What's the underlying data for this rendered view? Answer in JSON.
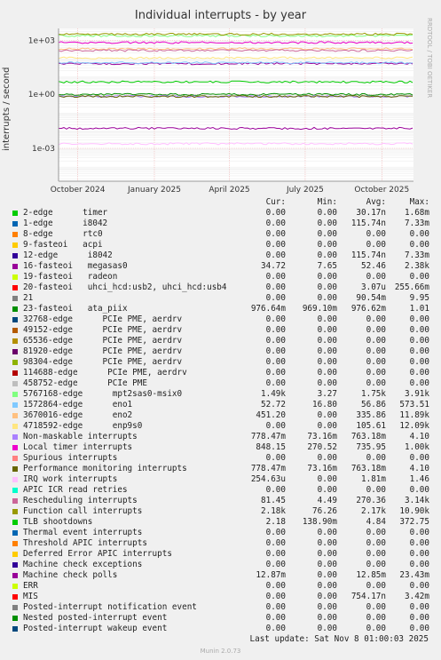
{
  "page": {
    "title": "Individual interrupts - by year",
    "side_text": "RRDTOOL / TOBI OETIKER",
    "footer": "Last update: Sat Nov  8 01:00:03 2025",
    "munin": "Munin 2.0.73"
  },
  "chart_data": {
    "type": "line",
    "title": "Individual interrupts - by year",
    "ylabel": "interrupts / second",
    "yscale": "log",
    "ylim": [
      1.5e-05,
      4500
    ],
    "yticks": [
      {
        "v": 0.001,
        "label": "1e-03"
      },
      {
        "v": 1,
        "label": "1e+00"
      },
      {
        "v": 1000,
        "label": "1e+03"
      }
    ],
    "xlim": [
      "2024-09-08",
      "2025-11-08"
    ],
    "xticks": [
      {
        "date": "2024-10-01",
        "label": "October 2024"
      },
      {
        "date": "2025-01-01",
        "label": "January 2025"
      },
      {
        "date": "2025-04-01",
        "label": "April 2025"
      },
      {
        "date": "2025-07-01",
        "label": "July 2025"
      },
      {
        "date": "2025-10-01",
        "label": "October 2025"
      }
    ],
    "grid": true,
    "columns": [
      "Cur:",
      "Min:",
      "Avg:",
      "Max:"
    ],
    "series": [
      {
        "name": "2-edge      timer",
        "color": "#00cc00",
        "cur": "0.00",
        "min": "0.00",
        "avg": "30.17n",
        "max": "1.68m",
        "y": 0
      },
      {
        "name": "1-edge      i8042",
        "color": "#0066b3",
        "cur": "0.00",
        "min": "0.00",
        "avg": "115.74n",
        "max": "7.33m",
        "y": 0
      },
      {
        "name": "8-edge      rtc0",
        "color": "#ff8000",
        "cur": "0.00",
        "min": "0.00",
        "avg": "0.00",
        "max": "0.00",
        "y": 0
      },
      {
        "name": "9-fasteoi   acpi",
        "color": "#ffcc00",
        "cur": "0.00",
        "min": "0.00",
        "avg": "0.00",
        "max": "0.00",
        "y": 0
      },
      {
        "name": "12-edge      i8042",
        "color": "#330099",
        "cur": "0.00",
        "min": "0.00",
        "avg": "115.74n",
        "max": "7.33m",
        "y": 0
      },
      {
        "name": "16-fasteoi   megasas0",
        "color": "#990099",
        "cur": "34.72",
        "min": "7.65",
        "avg": "52.46",
        "max": "2.38k",
        "y": 50
      },
      {
        "name": "19-fasteoi   radeon",
        "color": "#ccff00",
        "cur": "0.00",
        "min": "0.00",
        "avg": "0.00",
        "max": "0.00",
        "y": 0
      },
      {
        "name": "20-fasteoi   uhci_hcd:usb2, uhci_hcd:usb4",
        "color": "#ff0000",
        "cur": "0.00",
        "min": "0.00",
        "avg": "3.07u",
        "max": "255.66m",
        "y": 0
      },
      {
        "name": "21",
        "color": "#808080",
        "cur": "0.00",
        "min": "0.00",
        "avg": "90.54m",
        "max": "9.95",
        "y": 0
      },
      {
        "name": "23-fasteoi   ata_piix",
        "color": "#008f00",
        "cur": "976.64m",
        "min": "969.10m",
        "avg": "976.62m",
        "max": "1.01",
        "y": 0.977
      },
      {
        "name": "32768-edge      PCIe PME, aerdrv",
        "color": "#00487d",
        "cur": "0.00",
        "min": "0.00",
        "avg": "0.00",
        "max": "0.00",
        "y": 0
      },
      {
        "name": "49152-edge      PCIe PME, aerdrv",
        "color": "#b35a00",
        "cur": "0.00",
        "min": "0.00",
        "avg": "0.00",
        "max": "0.00",
        "y": 0
      },
      {
        "name": "65536-edge      PCIe PME, aerdrv",
        "color": "#b38f00",
        "cur": "0.00",
        "min": "0.00",
        "avg": "0.00",
        "max": "0.00",
        "y": 0
      },
      {
        "name": "81920-edge      PCIe PME, aerdrv",
        "color": "#6b006b",
        "cur": "0.00",
        "min": "0.00",
        "avg": "0.00",
        "max": "0.00",
        "y": 0
      },
      {
        "name": "98304-edge      PCIe PME, aerdrv",
        "color": "#8fb300",
        "cur": "0.00",
        "min": "0.00",
        "avg": "0.00",
        "max": "0.00",
        "y": 0
      },
      {
        "name": "114688-edge      PCIe PME, aerdrv",
        "color": "#b30000",
        "cur": "0.00",
        "min": "0.00",
        "avg": "0.00",
        "max": "0.00",
        "y": 0
      },
      {
        "name": "458752-edge      PCIe PME",
        "color": "#bebebe",
        "cur": "0.00",
        "min": "0.00",
        "avg": "0.00",
        "max": "0.00",
        "y": 0
      },
      {
        "name": "5767168-edge      mpt2sas0-msix0",
        "color": "#80ff80",
        "cur": "1.49k",
        "min": "3.27",
        "avg": "1.75k",
        "max": "3.91k",
        "y": 1750
      },
      {
        "name": "1572864-edge      eno1",
        "color": "#80c9ff",
        "cur": "52.72",
        "min": "16.80",
        "avg": "56.86",
        "max": "573.51",
        "y": 56
      },
      {
        "name": "3670016-edge      eno2",
        "color": "#ffc080",
        "cur": "451.20",
        "min": "0.00",
        "avg": "335.86",
        "max": "11.89k",
        "y": 335
      },
      {
        "name": "4718592-edge      enp9s0",
        "color": "#ffe680",
        "cur": "0.00",
        "min": "0.00",
        "avg": "105.61",
        "max": "12.09k",
        "y": 105
      },
      {
        "name": "Non-maskable interrupts",
        "color": "#aa80ff",
        "cur": "778.47m",
        "min": "73.16m",
        "avg": "763.18m",
        "max": "4.10",
        "y": 0.76
      },
      {
        "name": "Local timer interrupts",
        "color": "#ee00cc",
        "cur": "848.15",
        "min": "270.52",
        "avg": "735.95",
        "max": "1.00k",
        "y": 735
      },
      {
        "name": "Spurious interrupts",
        "color": "#ff8080",
        "cur": "0.00",
        "min": "0.00",
        "avg": "0.00",
        "max": "0.00",
        "y": 0
      },
      {
        "name": "Performance monitoring interrupts",
        "color": "#666600",
        "cur": "778.47m",
        "min": "73.16m",
        "avg": "763.18m",
        "max": "4.10",
        "y": 0.76
      },
      {
        "name": "IRQ work interrupts",
        "color": "#ffbfff",
        "cur": "254.63u",
        "min": "0.00",
        "avg": "1.81m",
        "max": "1.46",
        "y": 0.0018
      },
      {
        "name": "APIC ICR read retries",
        "color": "#00ffcc",
        "cur": "0.00",
        "min": "0.00",
        "avg": "0.00",
        "max": "0.00",
        "y": 0
      },
      {
        "name": "Rescheduling interrupts",
        "color": "#cc6699",
        "cur": "81.45",
        "min": "4.49",
        "avg": "270.36",
        "max": "3.14k",
        "y": 270
      },
      {
        "name": "Function call interrupts",
        "color": "#999900",
        "cur": "2.18k",
        "min": "76.26",
        "avg": "2.17k",
        "max": "10.90k",
        "y": 2170
      },
      {
        "name": "TLB shootdowns",
        "color": "#00cc00",
        "cur": "2.18",
        "min": "138.90m",
        "avg": "4.84",
        "max": "372.75",
        "y": 4.84
      },
      {
        "name": "Thermal event interrupts",
        "color": "#0066b3",
        "cur": "0.00",
        "min": "0.00",
        "avg": "0.00",
        "max": "0.00",
        "y": 0
      },
      {
        "name": "Threshold APIC interrupts",
        "color": "#ff8000",
        "cur": "0.00",
        "min": "0.00",
        "avg": "0.00",
        "max": "0.00",
        "y": 0
      },
      {
        "name": "Deferred Error APIC interrupts",
        "color": "#ffcc00",
        "cur": "0.00",
        "min": "0.00",
        "avg": "0.00",
        "max": "0.00",
        "y": 0
      },
      {
        "name": "Machine check exceptions",
        "color": "#330099",
        "cur": "0.00",
        "min": "0.00",
        "avg": "0.00",
        "max": "0.00",
        "y": 0
      },
      {
        "name": "Machine check polls",
        "color": "#990099",
        "cur": "12.87m",
        "min": "0.00",
        "avg": "12.85m",
        "max": "23.43m",
        "y": 0.01285
      },
      {
        "name": "ERR",
        "color": "#ccff00",
        "cur": "0.00",
        "min": "0.00",
        "avg": "0.00",
        "max": "0.00",
        "y": 0
      },
      {
        "name": "MIS",
        "color": "#ff0000",
        "cur": "0.00",
        "min": "0.00",
        "avg": "754.17n",
        "max": "3.42m",
        "y": 0
      },
      {
        "name": "Posted-interrupt notification event",
        "color": "#808080",
        "cur": "0.00",
        "min": "0.00",
        "avg": "0.00",
        "max": "0.00",
        "y": 0
      },
      {
        "name": "Nested posted-interrupt event",
        "color": "#008f00",
        "cur": "0.00",
        "min": "0.00",
        "avg": "0.00",
        "max": "0.00",
        "y": 0
      },
      {
        "name": "Posted-interrupt wakeup event",
        "color": "#00487d",
        "cur": "0.00",
        "min": "0.00",
        "avg": "0.00",
        "max": "0.00",
        "y": 0
      }
    ]
  }
}
